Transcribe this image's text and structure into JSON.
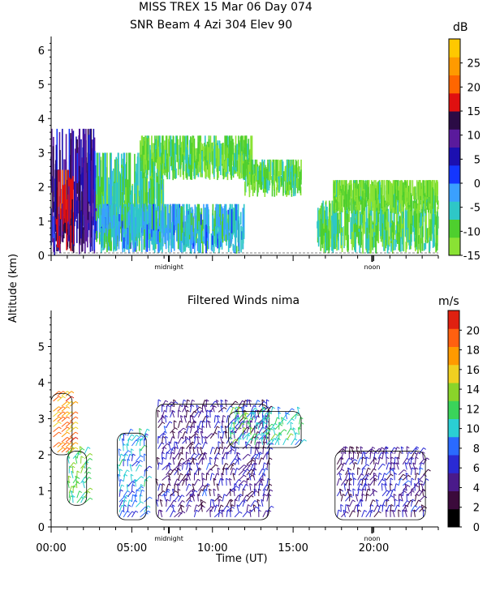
{
  "header": {
    "line1": "MISS TREX  15 Mar 06 Day 074",
    "line2": "SNR Beam 4 Azi 304 Elev 90"
  },
  "shared": {
    "ylabel": "Altitude (km)",
    "xlabel": "Time (UT)",
    "x_ticklabels": [
      "00:00",
      "05:00",
      "10:00",
      "15:00",
      "20:00"
    ],
    "annotations": [
      "midnight",
      "noon"
    ]
  },
  "chart_data": [
    {
      "type": "heatmap",
      "title": "SNR Beam 4 Azi 304 Elev 90",
      "ylabel": "Altitude (km)",
      "y_ticks": [
        0,
        1,
        2,
        3,
        4,
        5,
        6
      ],
      "ylim": [
        0,
        6.4
      ],
      "xlim_hours": [
        0,
        24
      ],
      "annotations": [
        {
          "text": "midnight",
          "x_hour": 7.3
        },
        {
          "text": "noon",
          "x_hour": 19.9
        }
      ],
      "colorbar": {
        "unit": "dB",
        "range": [
          -15,
          30
        ],
        "tick_labels": [
          -15,
          -10,
          -5,
          0,
          5,
          10,
          15,
          20,
          25
        ],
        "colors": [
          "#8ae234",
          "#4ecf2e",
          "#2ec7c7",
          "#3aa0ff",
          "#1436ff",
          "#1c0fb0",
          "#5a1a9c",
          "#2b0b45",
          "#e01010",
          "#ff6600",
          "#ff9a00",
          "#ffc800"
        ]
      },
      "regions": [
        {
          "name": "left-high-snr",
          "x": [
            0.0,
            2.8
          ],
          "y": [
            0.0,
            3.7
          ],
          "snr_db": 8
        },
        {
          "name": "left-core",
          "x": [
            0.3,
            1.4
          ],
          "y": [
            0.1,
            2.5
          ],
          "snr_db": 15
        },
        {
          "name": "morning-layer",
          "x": [
            2.8,
            7.0
          ],
          "y": [
            0.1,
            3.0
          ],
          "snr_db": -8
        },
        {
          "name": "arc-layer",
          "x": [
            5.5,
            12.5
          ],
          "y": [
            2.2,
            3.5
          ],
          "snr_db": -10
        },
        {
          "name": "low-band",
          "x": [
            3.0,
            12.0
          ],
          "y": [
            0.05,
            1.5
          ],
          "snr_db": -4
        },
        {
          "name": "mid-layer",
          "x": [
            12.0,
            15.5
          ],
          "y": [
            1.7,
            2.8
          ],
          "snr_db": -10
        },
        {
          "name": "afternoon-low",
          "x": [
            16.5,
            24.0
          ],
          "y": [
            0.05,
            1.6
          ],
          "snr_db": -9
        },
        {
          "name": "afternoon-upper",
          "x": [
            17.5,
            24.0
          ],
          "y": [
            1.2,
            2.2
          ],
          "snr_db": -12
        }
      ]
    },
    {
      "type": "vector-field",
      "title": "Filtered Winds nima",
      "xlabel": "Time (UT)",
      "ylabel": "Altitude (km)",
      "y_ticks": [
        0,
        1,
        2,
        3,
        4,
        5
      ],
      "ylim": [
        0,
        6.0
      ],
      "xlim_hours": [
        0,
        24
      ],
      "x_ticks_hours": [
        0,
        5,
        10,
        15,
        20
      ],
      "x_ticklabels": [
        "00:00",
        "05:00",
        "10:00",
        "15:00",
        "20:00"
      ],
      "annotations": [
        {
          "text": "midnight",
          "x_hour": 7.3
        },
        {
          "text": "noon",
          "x_hour": 19.9
        }
      ],
      "colorbar": {
        "unit": "m/s",
        "range": [
          0,
          22
        ],
        "tick_labels": [
          0,
          2,
          4,
          6,
          8,
          10,
          12,
          14,
          16,
          18,
          20
        ],
        "colors": [
          "#000000",
          "#3b0a3b",
          "#4a1a8a",
          "#2a2ad4",
          "#2a6aff",
          "#2acfd4",
          "#3ad45a",
          "#8ad42a",
          "#f0d020",
          "#ff9a00",
          "#ff6010",
          "#e02010"
        ]
      },
      "regions": [
        {
          "name": "early-strong",
          "x": [
            0.0,
            1.3
          ],
          "y": [
            2.0,
            3.7
          ],
          "speed_ms": 18
        },
        {
          "name": "early-low",
          "x": [
            1.0,
            2.2
          ],
          "y": [
            0.6,
            2.1
          ],
          "speed_ms": 12
        },
        {
          "name": "mid-morning",
          "x": [
            4.1,
            5.9
          ],
          "y": [
            0.2,
            2.6
          ],
          "speed_ms": 9
        },
        {
          "name": "main-block",
          "x": [
            6.5,
            13.5
          ],
          "y": [
            0.2,
            3.4
          ],
          "speed_ms": 5
        },
        {
          "name": "upper-arc",
          "x": [
            11.0,
            15.5
          ],
          "y": [
            2.2,
            3.2
          ],
          "speed_ms": 11
        },
        {
          "name": "afternoon",
          "x": [
            17.6,
            23.2
          ],
          "y": [
            0.2,
            2.1
          ],
          "speed_ms": 5
        }
      ]
    }
  ]
}
